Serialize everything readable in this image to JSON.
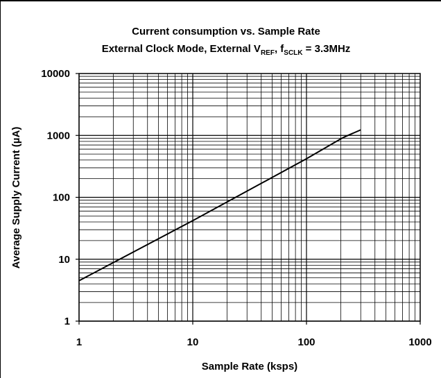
{
  "chart_data": {
    "type": "line",
    "title": "Current consumption vs. Sample Rate",
    "subtitle": {
      "prefix": "External Clock Mode, External V",
      "vref_sub": "REF",
      "middle": ", f",
      "fsclk_sub": "SCLK",
      "suffix": " = 3.3MHz"
    },
    "xlabel": "Sample Rate (ksps)",
    "ylabel": "Average Supply Current (µA)",
    "x_scale": "log",
    "y_scale": "log",
    "xlim": [
      1,
      1000
    ],
    "ylim": [
      1,
      10000
    ],
    "x_ticks": [
      "1",
      "10",
      "100",
      "1000"
    ],
    "y_ticks": [
      "1",
      "10",
      "100",
      "1000",
      "10000"
    ],
    "grid": true,
    "series": [
      {
        "x": [
          1,
          10,
          100,
          200,
          220,
          300
        ],
        "y": [
          4.5,
          42,
          420,
          880,
          960,
          1230
        ]
      }
    ]
  }
}
